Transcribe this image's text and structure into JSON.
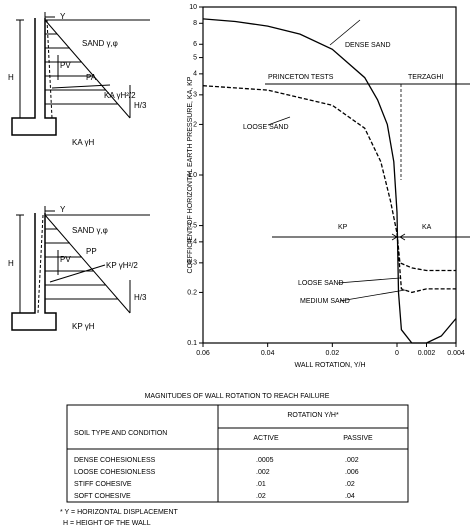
{
  "diagrams": [
    {
      "displacement": "Y",
      "soil": "SAND γ,φ",
      "height": "H",
      "vertical": "PV",
      "force": "PA",
      "coefficient": "KA γH²/2",
      "lever": "H/3",
      "base": "KA γH"
    },
    {
      "displacement": "Y",
      "soil": "SAND γ,φ",
      "height": "H",
      "vertical": "PV",
      "force": "PP",
      "coefficient": "KP γH²/2",
      "lever": "H/3",
      "base": "KP γH"
    }
  ],
  "chart_data": {
    "type": "line",
    "y_label": "COEFFICIENT OF HORIZONTAL EARTH PRESSURE, KA, KP",
    "x_label": "WALL ROTATION, Y/H",
    "ylog": true,
    "ylim": [
      0.1,
      10
    ],
    "yticks": [
      0.1,
      0.2,
      0.3,
      0.4,
      0.5,
      {
        "value": 1,
        "label": "1.0"
      },
      2,
      3,
      4,
      5,
      6,
      8,
      10
    ],
    "xlim": [
      -0.06,
      0.004
    ],
    "xticks": [
      {
        "value": -0.06,
        "label": "0.06"
      },
      {
        "value": -0.04,
        "label": "0.04"
      },
      {
        "value": -0.02,
        "label": "0.02"
      },
      0,
      0.002,
      0.004
    ],
    "series": [
      {
        "name": "DENSE SAND",
        "color": "#000000",
        "dashed": false,
        "x": [
          -0.06,
          -0.05,
          -0.04,
          -0.03,
          -0.02,
          -0.01,
          -0.006,
          -0.003,
          -0.001,
          0,
          0.0001,
          0.0003,
          0.001,
          0.002,
          0.003,
          0.004
        ],
        "values": [
          8.5,
          8.2,
          7.7,
          6.9,
          5.6,
          3.8,
          2.8,
          2.0,
          1.2,
          0.6,
          0.2,
          0.12,
          0.1,
          0.1,
          0.11,
          0.14
        ]
      },
      {
        "name": "LOOSE SAND",
        "color": "#000000",
        "dashed": true,
        "x": [
          -0.06,
          -0.04,
          -0.02,
          -0.01,
          -0.005,
          -0.002,
          0,
          0.0002,
          0.001,
          0.002,
          0.004
        ],
        "values": [
          3.4,
          3.2,
          2.6,
          1.9,
          1.2,
          0.7,
          0.45,
          0.3,
          0.28,
          0.27,
          0.27
        ]
      },
      {
        "name": "MEDIUM SAND",
        "color": "#000000",
        "dashed": true,
        "x": [
          0,
          0.0003,
          0.001,
          0.002,
          0.004
        ],
        "values": [
          0.45,
          0.21,
          0.2,
          0.21,
          0.21
        ]
      }
    ],
    "annotations": {
      "princeton": "PRINCETON TESTS",
      "terzaghi": "TERZAGHI",
      "kp": "KP",
      "ka": "KA",
      "loose_right": "LOOSE SAND"
    }
  },
  "table": {
    "title": "MAGNITUDES OF WALL ROTATION TO REACH FAILURE",
    "header": {
      "soil": "SOIL TYPE AND CONDITION",
      "rotation": "ROTATION Y/H*",
      "active": "ACTIVE",
      "passive": "PASSIVE"
    },
    "rows": [
      [
        "DENSE COHESIONLESS",
        ".0005",
        ".002"
      ],
      [
        "LOOSE COHESIONLESS",
        ".002",
        ".006"
      ],
      [
        "STIFF COHESIVE",
        ".01",
        ".02"
      ],
      [
        "SOFT COHESIVE",
        ".02",
        ".04"
      ]
    ],
    "footnotes": [
      "* Y = HORIZONTAL DISPLACEMENT",
      "H = HEIGHT OF THE WALL"
    ]
  }
}
